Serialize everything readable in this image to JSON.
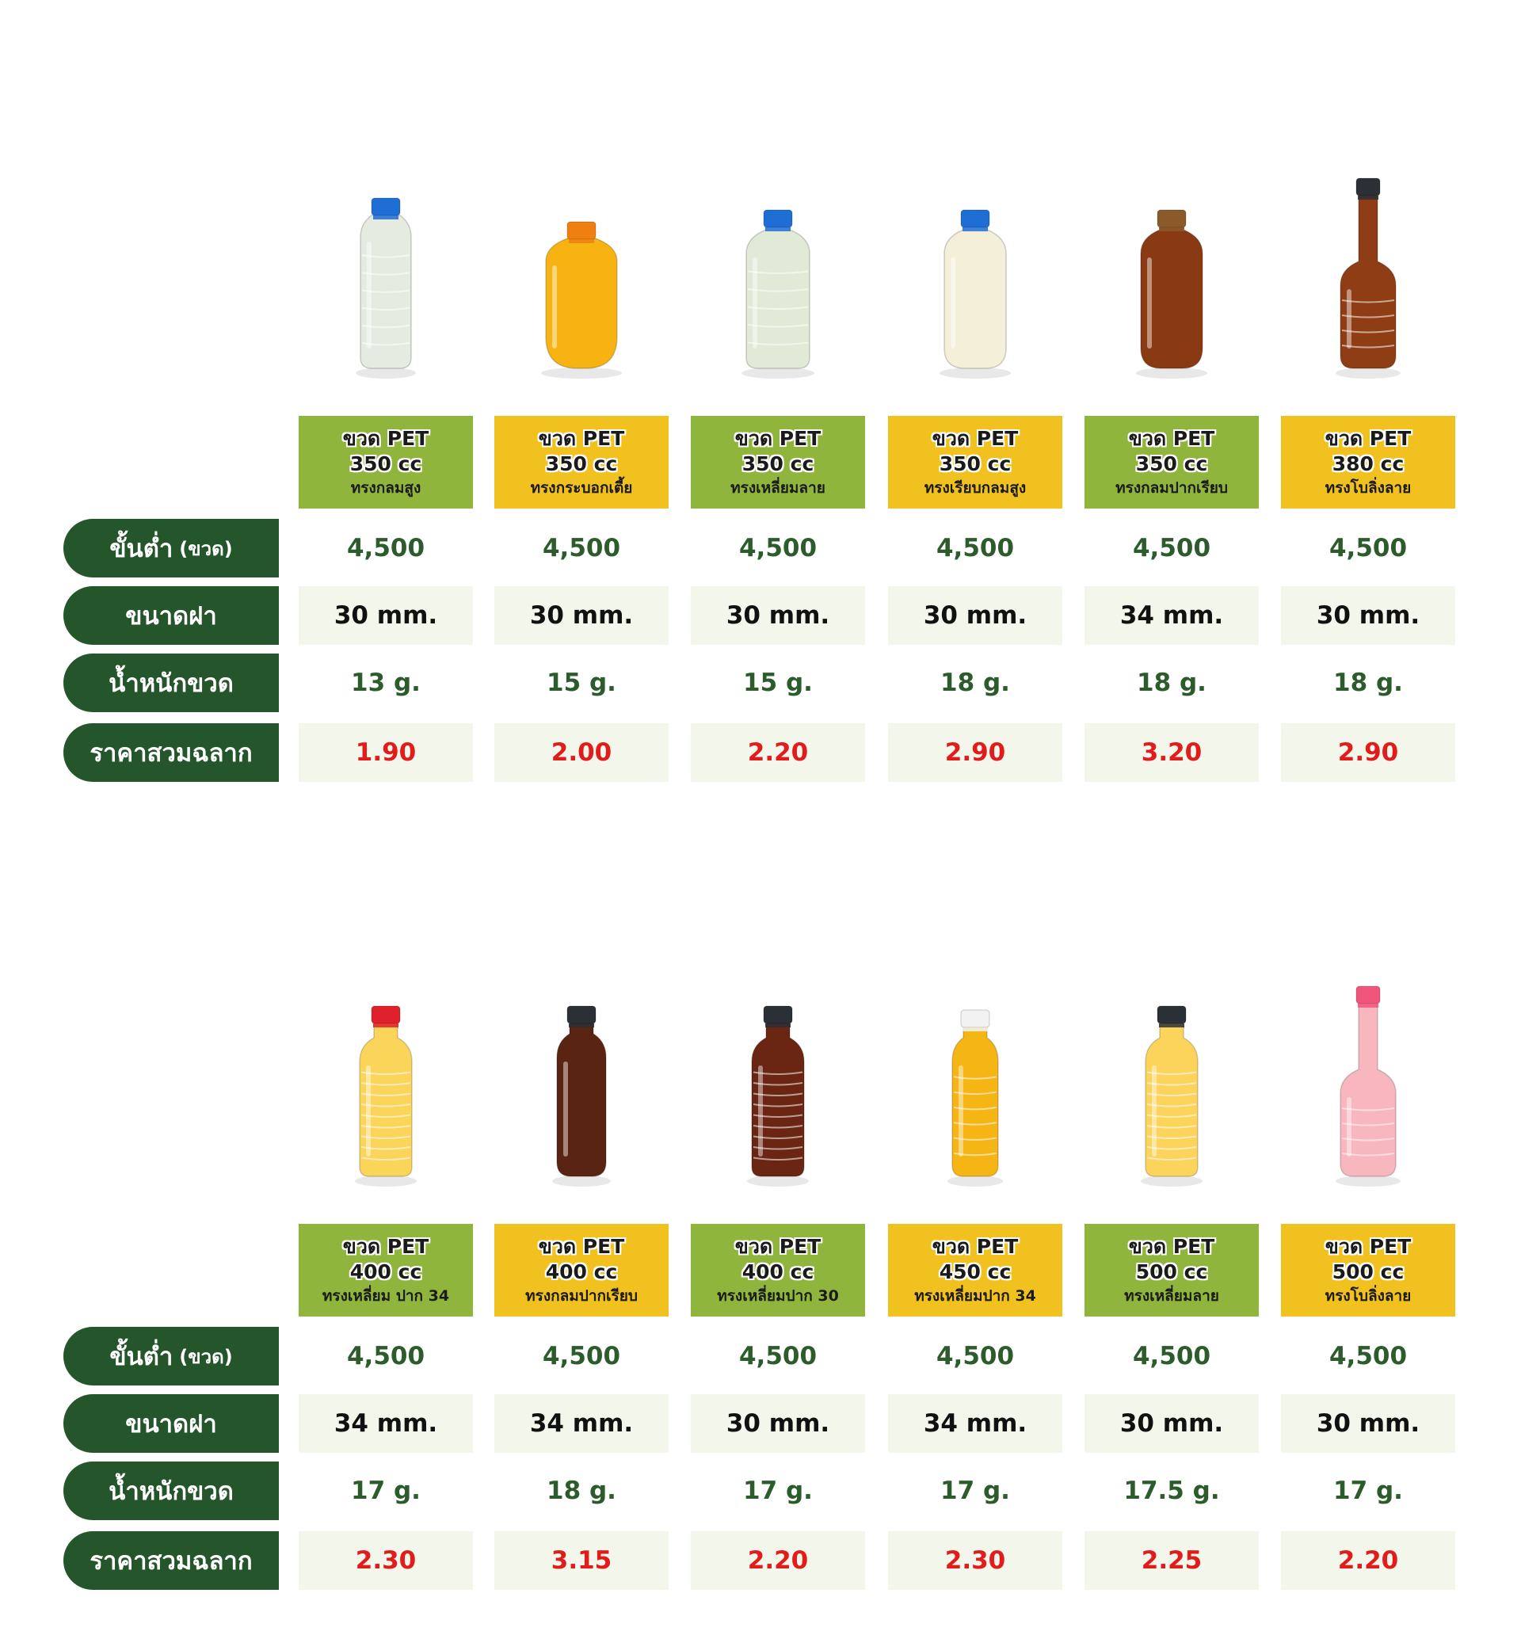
{
  "labels": {
    "min_order": "ขั้นต่ำ",
    "min_order_unit": "(ขวด)",
    "cap_size": "ขนาดฝา",
    "bottle_weight": "น้ำหนักขวด",
    "price_with_label": "ราคาสวมฉลาก"
  },
  "colors": {
    "header_green": "#8fb53d",
    "header_yellow": "#f1c21f",
    "label_bg": "#24552b",
    "price_red": "#e21b1b",
    "value_green": "#2c5b2c",
    "row_shade": "#f3f6ea"
  },
  "sections": [
    {
      "products": [
        {
          "line1": "ขวด PET",
          "line2": "350 cc",
          "shape": "ทรงกลมสูง",
          "min": "4,500",
          "cap": "30 mm.",
          "weight": "13 g.",
          "price": "1.90",
          "liquid": "#e6ebe1",
          "cap_color": "#1e6ed6",
          "bottle": "tall-ridged"
        },
        {
          "line1": "ขวด PET",
          "line2": "350 cc",
          "shape": "ทรงกระบอกเตี้ย",
          "min": "4,500",
          "cap": "30 mm.",
          "weight": "15 g.",
          "price": "2.00",
          "liquid": "#f6b312",
          "cap_color": "#f07f12",
          "bottle": "short-round"
        },
        {
          "line1": "ขวด PET",
          "line2": "350 cc",
          "shape": "ทรงเหลี่ยมลาย",
          "min": "4,500",
          "cap": "30 mm.",
          "weight": "15 g.",
          "price": "2.20",
          "liquid": "#e1ead7",
          "cap_color": "#1e6ed6",
          "bottle": "square-ridged"
        },
        {
          "line1": "ขวด PET",
          "line2": "350 cc",
          "shape": "ทรงเรียบกลมสูง",
          "min": "4,500",
          "cap": "30 mm.",
          "weight": "18 g.",
          "price": "2.90",
          "liquid": "#f4efd9",
          "cap_color": "#1e6ed6",
          "bottle": "smooth-round"
        },
        {
          "line1": "ขวด PET",
          "line2": "350 cc",
          "shape": "ทรงกลมปากเรียบ",
          "min": "4,500",
          "cap": "34 mm.",
          "weight": "18 g.",
          "price": "3.20",
          "liquid": "#8a3a12",
          "cap_color": "#8b5a2b",
          "bottle": "smooth-round"
        },
        {
          "line1": "ขวด PET",
          "line2": "380 cc",
          "shape": "ทรงโบลิ่งลาย",
          "min": "4,500",
          "cap": "30 mm.",
          "weight": "18 g.",
          "price": "2.90",
          "liquid": "#8e3d14",
          "cap_color": "#2b2f36",
          "bottle": "bowling"
        }
      ]
    },
    {
      "products": [
        {
          "line1": "ขวด PET",
          "line2": "400 cc",
          "shape": "ทรงเหลี่ยม ปาก 34",
          "min": "4,500",
          "cap": "34 mm.",
          "weight": "17 g.",
          "price": "2.30",
          "liquid": "#fbd45a",
          "cap_color": "#e0202a",
          "bottle": "square-ridged-tall"
        },
        {
          "line1": "ขวด PET",
          "line2": "400 cc",
          "shape": "ทรงกลมปากเรียบ",
          "min": "4,500",
          "cap": "34 mm.",
          "weight": "18 g.",
          "price": "3.15",
          "liquid": "#5a2412",
          "cap_color": "#2b2f36",
          "bottle": "slim-round"
        },
        {
          "line1": "ขวด PET",
          "line2": "400 cc",
          "shape": "ทรงเหลี่ยมปาก 30",
          "min": "4,500",
          "cap": "30 mm.",
          "weight": "17 g.",
          "price": "2.20",
          "liquid": "#6a2612",
          "cap_color": "#2b2f36",
          "bottle": "square-ridged-tall"
        },
        {
          "line1": "ขวด PET",
          "line2": "450 cc",
          "shape": "ทรงเหลี่ยมปาก 34",
          "min": "4,500",
          "cap": "34 mm.",
          "weight": "17 g.",
          "price": "2.30",
          "liquid": "#f5b515",
          "cap_color": "#f2f2f2",
          "bottle": "waisted"
        },
        {
          "line1": "ขวด PET",
          "line2": "500 cc",
          "shape": "ทรงเหลี่ยมลาย",
          "min": "4,500",
          "cap": "30 mm.",
          "weight": "17.5 g.",
          "price": "2.25",
          "liquid": "#fcd45c",
          "cap_color": "#2b2f36",
          "bottle": "square-ridged-tall"
        },
        {
          "line1": "ขวด PET",
          "line2": "500 cc",
          "shape": "ทรงโบลิ่งลาย",
          "min": "4,500",
          "cap": "30 mm.",
          "weight": "17 g.",
          "price": "2.20",
          "liquid": "#f8b7bf",
          "cap_color": "#f2557a",
          "bottle": "bowling"
        }
      ]
    }
  ]
}
